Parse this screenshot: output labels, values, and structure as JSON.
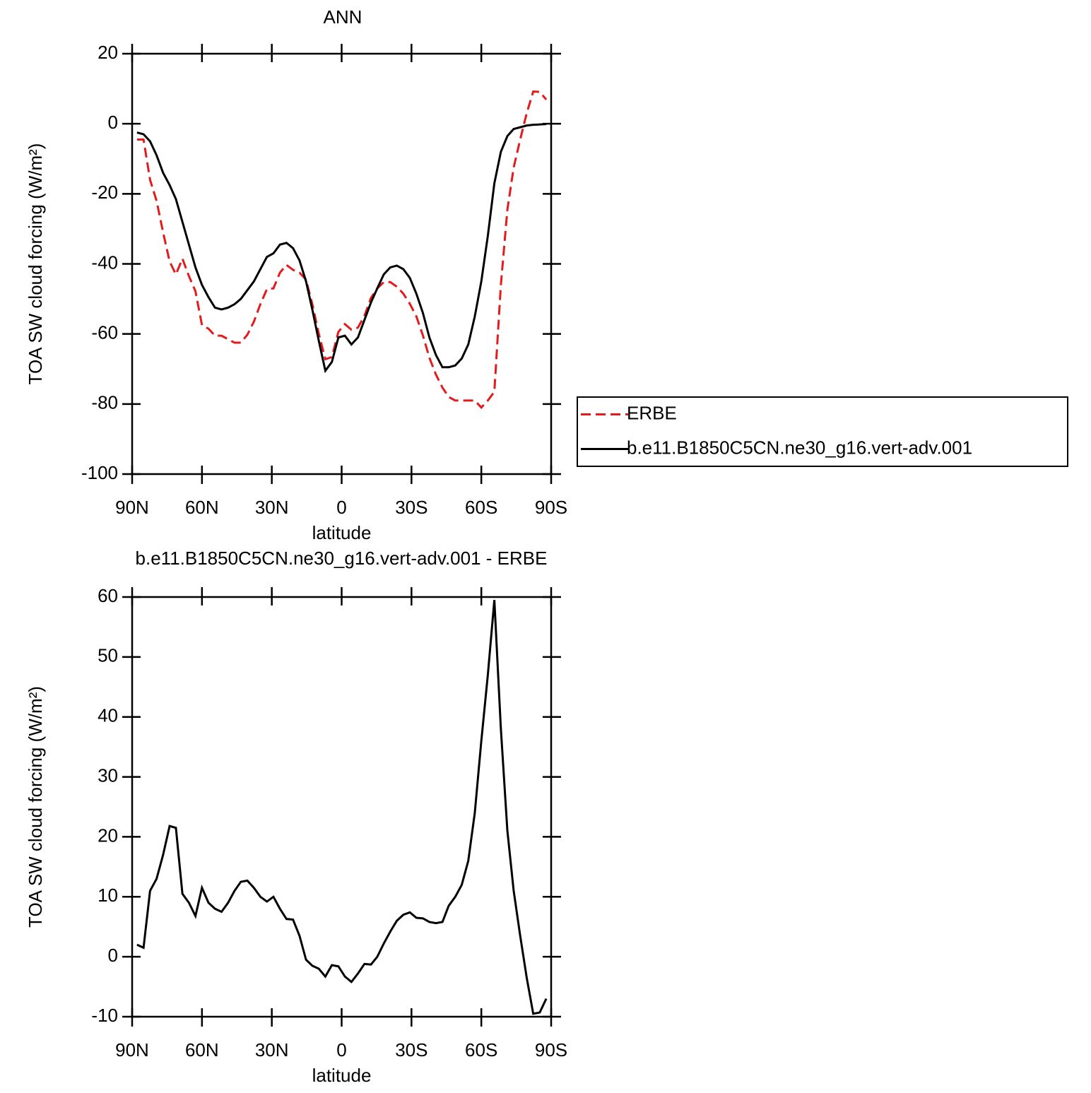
{
  "chart_data": [
    {
      "type": "line",
      "title": "ANN",
      "x_label": "latitude",
      "y_label": "TOA SW cloud forcing (W/m²)",
      "xlim": [
        90,
        -90
      ],
      "xticks": [
        {
          "value": 90,
          "label": "90N"
        },
        {
          "value": 60,
          "label": "60N"
        },
        {
          "value": 30,
          "label": "30N"
        },
        0,
        {
          "value": -30,
          "label": "30S"
        },
        {
          "value": -60,
          "label": "60S"
        },
        {
          "value": -90,
          "label": "90S"
        }
      ],
      "ylim": [
        -100,
        20
      ],
      "yticks": [
        -100,
        -80,
        -60,
        -40,
        -20,
        0,
        20
      ],
      "legend": "right",
      "x": [
        87.9,
        85.1,
        82.3,
        79.5,
        76.7,
        73.9,
        71.2,
        68.4,
        65.6,
        62.8,
        60.0,
        57.2,
        54.4,
        51.6,
        48.8,
        46.0,
        43.3,
        40.5,
        37.7,
        34.9,
        32.1,
        29.3,
        26.5,
        23.7,
        20.9,
        18.1,
        15.3,
        12.6,
        9.8,
        7.0,
        4.2,
        1.4,
        -1.4,
        -4.2,
        -7.0,
        -9.8,
        -12.6,
        -15.3,
        -18.1,
        -20.9,
        -23.7,
        -26.5,
        -29.3,
        -32.1,
        -34.9,
        -37.7,
        -40.5,
        -43.3,
        -46.0,
        -48.8,
        -51.6,
        -54.4,
        -57.2,
        -60.0,
        -62.8,
        -65.6,
        -68.4,
        -71.2,
        -73.9,
        -76.7,
        -79.5,
        -82.3,
        -85.1,
        -87.9
      ],
      "series": [
        {
          "name": "ERBE",
          "color": "#e41a1c",
          "linestyle": "dashed",
          "values": [
            -4.5,
            -4.5,
            -16,
            -22,
            -31,
            -39.3,
            -43,
            -38.5,
            -43.5,
            -47.8,
            -57.5,
            -58.5,
            -60.5,
            -60.5,
            -61.5,
            -62.5,
            -62.5,
            -60.2,
            -56.5,
            -51.5,
            -47.2,
            -47,
            -42.5,
            -40.3,
            -41.7,
            -42.5,
            -44.5,
            -51.5,
            -60,
            -67.2,
            -66.6,
            -59.4,
            -57.2,
            -58.8,
            -58.2,
            -54.8,
            -49.7,
            -47,
            -45.2,
            -45.2,
            -46.5,
            -48.5,
            -51.4,
            -55,
            -60.4,
            -66.8,
            -71.6,
            -75.3,
            -78,
            -79,
            -79,
            -79,
            -79,
            -81,
            -79,
            -76.5,
            -46,
            -24.5,
            -12.5,
            -4.5,
            3,
            9.2,
            9.1,
            6.9
          ]
        },
        {
          "name": "b.e11.B1850C5CN.ne30_g16.vert-adv.001",
          "color": "#000000",
          "linestyle": "solid",
          "values": [
            -2.5,
            -3,
            -5,
            -9,
            -14,
            -17.5,
            -21.5,
            -28,
            -34.5,
            -41,
            -46,
            -49.5,
            -52.5,
            -53,
            -52.5,
            -51.5,
            -50,
            -47.5,
            -45,
            -41.5,
            -38,
            -37,
            -34.5,
            -34,
            -35.5,
            -39,
            -45,
            -53,
            -62,
            -70.5,
            -68,
            -61,
            -60.5,
            -63,
            -61,
            -56,
            -51,
            -47,
            -43,
            -41,
            -40.5,
            -41.5,
            -44,
            -48.5,
            -54,
            -61,
            -66,
            -69.5,
            -69.5,
            -69,
            -67,
            -63,
            -55,
            -45,
            -32,
            -17,
            -8,
            -3.5,
            -1.5,
            -1,
            -0.5,
            -0.3,
            -0.2,
            -0.1
          ]
        }
      ]
    },
    {
      "type": "line",
      "title": "b.e11.B1850C5CN.ne30_g16.vert-adv.001 - ERBE",
      "x_label": "latitude",
      "y_label": "TOA SW cloud forcing (W/m²)",
      "xlim": [
        90,
        -90
      ],
      "xticks": [
        {
          "value": 90,
          "label": "90N"
        },
        {
          "value": 60,
          "label": "60N"
        },
        {
          "value": 30,
          "label": "30N"
        },
        0,
        {
          "value": -30,
          "label": "30S"
        },
        {
          "value": -60,
          "label": "60S"
        },
        {
          "value": -90,
          "label": "90S"
        }
      ],
      "ylim": [
        -10,
        60
      ],
      "yticks": [
        -10,
        0,
        10,
        20,
        30,
        40,
        50,
        60
      ],
      "x": [
        87.9,
        85.1,
        82.3,
        79.5,
        76.7,
        73.9,
        71.2,
        68.4,
        65.6,
        62.8,
        60.0,
        57.2,
        54.4,
        51.6,
        48.8,
        46.0,
        43.3,
        40.5,
        37.7,
        34.9,
        32.1,
        29.3,
        26.5,
        23.7,
        20.9,
        18.1,
        15.3,
        12.6,
        9.8,
        7.0,
        4.2,
        1.4,
        -1.4,
        -4.2,
        -7.0,
        -9.8,
        -12.6,
        -15.3,
        -18.1,
        -20.9,
        -23.7,
        -26.5,
        -29.3,
        -32.1,
        -34.9,
        -37.7,
        -40.5,
        -43.3,
        -46.0,
        -48.8,
        -51.6,
        -54.4,
        -57.2,
        -60.0,
        -62.8,
        -65.6,
        -68.4,
        -71.2,
        -73.9,
        -76.7,
        -79.5,
        -82.3,
        -85.1,
        -87.9
      ],
      "series": [
        {
          "color": "#000000",
          "linestyle": "solid",
          "values": [
            2,
            1.5,
            11,
            13,
            17,
            21.8,
            21.5,
            10.5,
            9,
            6.8,
            11.5,
            9,
            8,
            7.5,
            9,
            11,
            12.5,
            12.7,
            11.5,
            10,
            9.2,
            10,
            8,
            6.3,
            6.2,
            3.5,
            -0.5,
            -1.5,
            -2,
            -3.3,
            -1.4,
            -1.6,
            -3.3,
            -4.2,
            -2.8,
            -1.2,
            -1.3,
            0,
            2.2,
            4.2,
            6,
            7,
            7.4,
            6.5,
            6.4,
            5.8,
            5.6,
            5.8,
            8.5,
            10,
            12,
            16,
            24,
            36,
            47,
            59.5,
            38,
            21,
            11,
            3.5,
            -3.5,
            -9.5,
            -9.3,
            -7
          ]
        }
      ]
    }
  ]
}
